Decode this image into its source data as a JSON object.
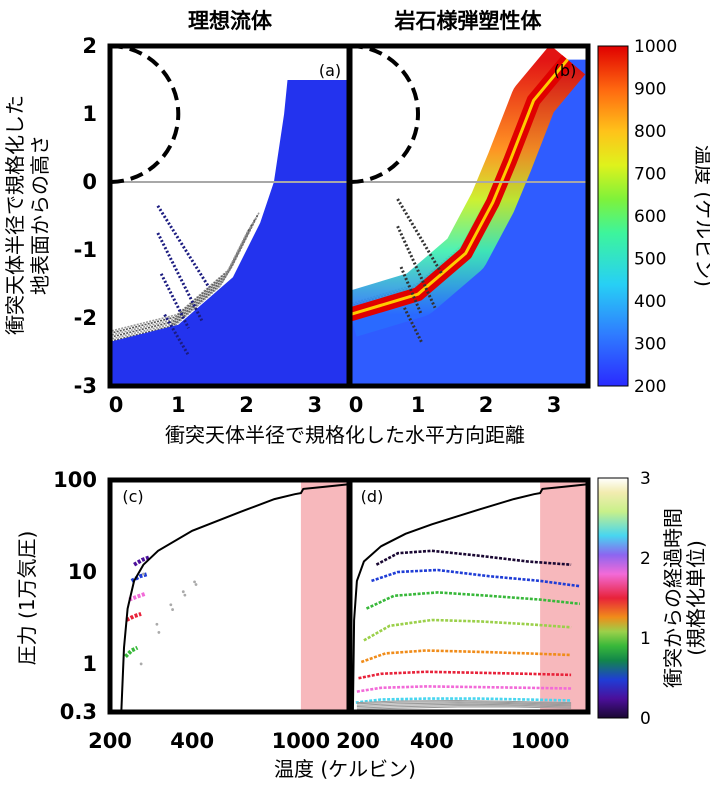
{
  "chart_data": [
    {
      "type": "scatter",
      "title": "理想流体",
      "panel_label": "(a)",
      "xlabel": "衝突天体半径で規格化した水平方向距離",
      "ylabel_line1": "衝突天体半径で規格化した",
      "ylabel_line2": "地表面からの高さ",
      "xlim": [
        0,
        3.5
      ],
      "ylim": [
        -3,
        2
      ],
      "xticks": [
        {
          "v": 0,
          "label": "0"
        },
        {
          "v": 1,
          "label": "1"
        },
        {
          "v": 2,
          "label": "2"
        },
        {
          "v": 3,
          "label": "3"
        }
      ],
      "yticks": [
        {
          "v": 2,
          "label": "2"
        },
        {
          "v": 1,
          "label": "1"
        },
        {
          "v": 0,
          "label": "0"
        },
        {
          "v": -1,
          "label": "-1"
        },
        {
          "v": -2,
          "label": "-2"
        },
        {
          "v": -3,
          "label": "-3"
        }
      ],
      "ground_level": 0,
      "impactor_circle": {
        "center": [
          0,
          1
        ],
        "radius": 1
      },
      "crater_wall": [
        [
          0,
          -2.35
        ],
        [
          1.0,
          -2.1
        ],
        [
          1.8,
          -1.4
        ],
        [
          2.2,
          -0.6
        ],
        [
          2.4,
          0
        ],
        [
          2.55,
          1.0
        ],
        [
          2.6,
          1.5
        ]
      ],
      "thrown_streaks": [
        {
          "from": [
            0.7,
            -0.35
          ],
          "to": [
            1.45,
            -1.55
          ]
        },
        {
          "from": [
            0.7,
            -0.75
          ],
          "to": [
            1.35,
            -2.05
          ]
        },
        {
          "from": [
            0.75,
            -1.35
          ],
          "to": [
            1.15,
            -2.15
          ]
        },
        {
          "from": [
            0.8,
            -1.95
          ],
          "to": [
            1.15,
            -2.55
          ]
        }
      ]
    },
    {
      "type": "scatter",
      "title": "岩石様弾塑性体",
      "panel_label": "(b)",
      "xlim": [
        0,
        3.5
      ],
      "ylim": [
        -3,
        2
      ],
      "xticks": [
        {
          "v": 0,
          "label": "0"
        },
        {
          "v": 1,
          "label": "1"
        },
        {
          "v": 2,
          "label": "2"
        },
        {
          "v": 3,
          "label": "3"
        }
      ],
      "ground_level": 0,
      "impactor_circle": {
        "center": [
          0,
          1
        ],
        "radius": 1
      },
      "crater_wall": [
        [
          0,
          -1.95
        ],
        [
          1.0,
          -1.65
        ],
        [
          1.7,
          -1.05
        ],
        [
          2.1,
          -0.3
        ],
        [
          2.35,
          0.3
        ],
        [
          2.7,
          1.2
        ],
        [
          3.2,
          1.8
        ]
      ],
      "hot_zone_temperature_K": 1000,
      "colorbar": {
        "label": "温度 (ケルビン)",
        "min": 200,
        "max": 1000,
        "ticks": [
          "1000",
          "900",
          "800",
          "700",
          "600",
          "500",
          "400",
          "300",
          "200"
        ]
      }
    },
    {
      "type": "line",
      "panel_label": "(c)",
      "xscale": "log",
      "yscale": "log",
      "xlabel": "温度 (ケルビン)",
      "ylabel": "圧力 (1万気圧)",
      "xlim": [
        200,
        1500
      ],
      "ylim": [
        0.3,
        100
      ],
      "xticks": [
        {
          "v": 200,
          "label": "200"
        },
        {
          "v": 400,
          "label": "400"
        },
        {
          "v": 1000,
          "label": "1000"
        }
      ],
      "yticks": [
        {
          "v": 100,
          "label": "100"
        },
        {
          "v": 10,
          "label": "10"
        },
        {
          "v": 1,
          "label": "1"
        },
        {
          "v": 0.3,
          "label": "0.3"
        }
      ],
      "shaded_region_T": [
        1000,
        1500
      ],
      "boundary_curve": [
        [
          220,
          0.3
        ],
        [
          225,
          1.5
        ],
        [
          232,
          4
        ],
        [
          245,
          8
        ],
        [
          265,
          12
        ],
        [
          300,
          17
        ],
        [
          400,
          28
        ],
        [
          600,
          45
        ],
        [
          800,
          62
        ],
        [
          950,
          70
        ],
        [
          1000,
          72
        ],
        [
          1020,
          80
        ],
        [
          1200,
          84
        ],
        [
          1500,
          90
        ]
      ],
      "tracks": [
        {
          "time": 1.0,
          "points": [
            [
              228,
              1.2
            ],
            [
              240,
              1.4
            ],
            [
              252,
              1.5
            ]
          ]
        },
        {
          "time": 1.5,
          "points": [
            [
              230,
              3.0
            ],
            [
              245,
              3.3
            ],
            [
              260,
              3.5
            ]
          ]
        },
        {
          "time": 2.0,
          "points": [
            [
              235,
              5.0
            ],
            [
              252,
              5.4
            ],
            [
              270,
              5.8
            ]
          ]
        },
        {
          "time": 0.5,
          "points": [
            [
              240,
              8.0
            ],
            [
              258,
              9.0
            ],
            [
              275,
              9.5
            ]
          ]
        },
        {
          "time": 0.3,
          "points": [
            [
              245,
              12.0
            ],
            [
              262,
              13.5
            ],
            [
              280,
              14.5
            ]
          ]
        }
      ]
    },
    {
      "type": "line",
      "panel_label": "(d)",
      "xscale": "log",
      "yscale": "log",
      "xlim": [
        200,
        1500
      ],
      "ylim": [
        0.3,
        100
      ],
      "xticks": [
        {
          "v": 200,
          "label": "200"
        },
        {
          "v": 400,
          "label": "400"
        },
        {
          "v": 1000,
          "label": "1000"
        }
      ],
      "shaded_region_T": [
        1000,
        1500
      ],
      "boundary_curve": [
        [
          205,
          0.3
        ],
        [
          207,
          3
        ],
        [
          212,
          8
        ],
        [
          225,
          13
        ],
        [
          260,
          19
        ],
        [
          320,
          26
        ],
        [
          400,
          33
        ],
        [
          600,
          48
        ],
        [
          800,
          62
        ],
        [
          950,
          70
        ],
        [
          1000,
          72
        ],
        [
          1020,
          80
        ],
        [
          1200,
          84
        ],
        [
          1500,
          90
        ]
      ],
      "tracks": [
        {
          "time": 0.2,
          "points": [
            [
              250,
              12
            ],
            [
              300,
              16
            ],
            [
              400,
              17
            ],
            [
              600,
              15
            ],
            [
              900,
              13
            ],
            [
              1300,
              12
            ]
          ]
        },
        {
          "time": 0.5,
          "points": [
            [
              240,
              8
            ],
            [
              300,
              10
            ],
            [
              420,
              10.5
            ],
            [
              650,
              9
            ],
            [
              1000,
              8
            ],
            [
              1400,
              7
            ]
          ]
        },
        {
          "time": 0.9,
          "points": [
            [
              230,
              4
            ],
            [
              290,
              5.5
            ],
            [
              420,
              6
            ],
            [
              650,
              5.5
            ],
            [
              1000,
              5
            ],
            [
              1400,
              4.5
            ]
          ]
        },
        {
          "time": 1.1,
          "points": [
            [
              225,
              1.8
            ],
            [
              280,
              2.6
            ],
            [
              400,
              3
            ],
            [
              600,
              2.9
            ],
            [
              900,
              2.7
            ],
            [
              1300,
              2.5
            ]
          ]
        },
        {
          "time": 1.3,
          "points": [
            [
              220,
              1.05
            ],
            [
              270,
              1.3
            ],
            [
              380,
              1.4
            ],
            [
              600,
              1.35
            ],
            [
              900,
              1.3
            ],
            [
              1300,
              1.25
            ]
          ]
        },
        {
          "time": 1.6,
          "points": [
            [
              215,
              0.7
            ],
            [
              260,
              0.78
            ],
            [
              380,
              0.82
            ],
            [
              600,
              0.8
            ],
            [
              900,
              0.78
            ],
            [
              1300,
              0.76
            ]
          ]
        },
        {
          "time": 2.0,
          "points": [
            [
              212,
              0.5
            ],
            [
              260,
              0.55
            ],
            [
              380,
              0.57
            ],
            [
              600,
              0.56
            ],
            [
              900,
              0.55
            ],
            [
              1300,
              0.54
            ]
          ]
        },
        {
          "time": 2.4,
          "points": [
            [
              210,
              0.38
            ],
            [
              260,
              0.41
            ],
            [
              380,
              0.42
            ],
            [
              600,
              0.42
            ],
            [
              900,
              0.41
            ],
            [
              1300,
              0.4
            ]
          ]
        }
      ],
      "colorbar": {
        "label_line1": "衝突からの経過時間",
        "label_line2": "(規格化単位)",
        "min": 0,
        "max": 3,
        "ticks": [
          "3",
          "2",
          "1",
          "0"
        ]
      }
    }
  ]
}
